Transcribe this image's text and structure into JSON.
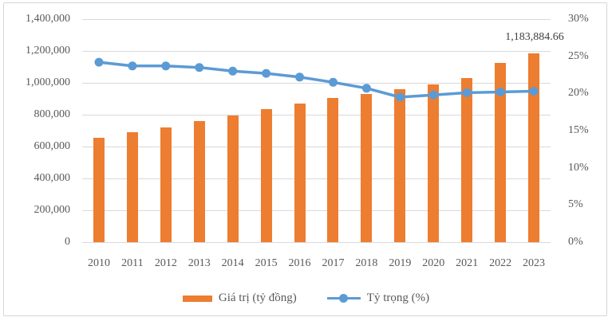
{
  "chart_data": {
    "type": "combo: bar (primary axis) + line with markers (secondary axis)",
    "categories": [
      "2010",
      "2011",
      "2012",
      "2013",
      "2014",
      "2015",
      "2016",
      "2017",
      "2018",
      "2019",
      "2020",
      "2021",
      "2022",
      "2023"
    ],
    "series": [
      {
        "name": "Giá trị (tỷ đồng)",
        "type": "bar",
        "axis": "left",
        "color": "#ED7D31",
        "values": [
          655000,
          688000,
          722000,
          760000,
          797000,
          835000,
          868000,
          905000,
          930000,
          962000,
          990000,
          1031000,
          1126000,
          1183884.66
        ]
      },
      {
        "name": "Tỷ trọng (%)",
        "type": "line",
        "axis": "right",
        "color": "#5B9BD5",
        "values": [
          24.2,
          23.7,
          23.7,
          23.5,
          23.0,
          22.7,
          22.2,
          21.5,
          20.7,
          19.5,
          19.8,
          20.1,
          20.2,
          20.3
        ]
      }
    ],
    "left_axis": {
      "min": 0,
      "max": 1400000,
      "step": 200000,
      "tick_labels": [
        "1,400,000",
        "1,200,000",
        "1,000,000",
        "800,000",
        "600,000",
        "400,000",
        "200,000",
        "0"
      ]
    },
    "right_axis": {
      "min": 0,
      "max": 30,
      "step": 5,
      "tick_labels": [
        "30%",
        "25%",
        "20%",
        "15%",
        "10%",
        "5%",
        "0%"
      ]
    },
    "annotations": [
      {
        "category": "2023",
        "series": "Giá trị (tỷ đồng)",
        "text": "1,183,884.66"
      }
    ],
    "grid": true,
    "legend_position": "bottom",
    "colors": {
      "bar": "#ED7D31",
      "line": "#5B9BD5",
      "gridline": "#D9D9D9",
      "text": "#595959",
      "border": "#D6D6D6"
    }
  }
}
